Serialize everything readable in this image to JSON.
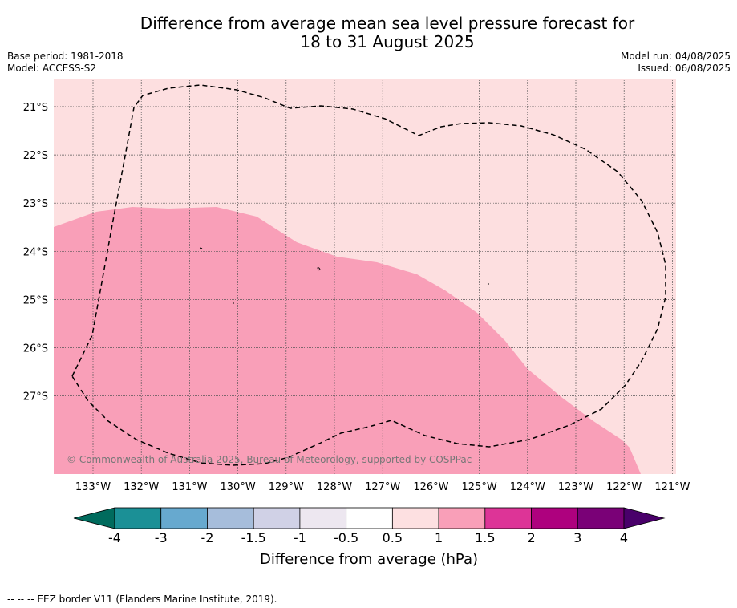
{
  "header": {
    "title_line1": "Difference from average mean sea level pressure forecast for",
    "title_line2": "18 to 31 August 2025",
    "base_period": "Base period: 1981-2018",
    "model": "Model: ACCESS-S2",
    "model_run": "Model run: 04/08/2025",
    "issued": "Issued: 06/08/2025"
  },
  "map": {
    "copyright": "© Commonwealth of Australia 2025, Bureau of Meteorology, supported by COSPPac",
    "lat_labels": [
      "21°S",
      "22°S",
      "23°S",
      "24°S",
      "25°S",
      "26°S",
      "27°S"
    ],
    "lon_labels": [
      "133°W",
      "132°W",
      "131°W",
      "130°W",
      "129°W",
      "128°W",
      "127°W",
      "126°W",
      "125°W",
      "124°W",
      "123°W",
      "122°W",
      "121°W"
    ],
    "colors": {
      "band_0_5_to_1": "#fddfe0",
      "band_1_to_1_5": "#f99fb8"
    }
  },
  "legend": {
    "title": "Difference from average (hPa)",
    "tick_labels": [
      "-4",
      "-3",
      "-2",
      "-1.5",
      "-1",
      "-0.5",
      "0.5",
      "1",
      "1.5",
      "2",
      "3",
      "4"
    ],
    "colors": [
      "#006b5d",
      "#1b9096",
      "#67a9cf",
      "#a6bddb",
      "#d0d1e6",
      "#ede7f0",
      "#ffffff",
      "#fde0e1",
      "#f99fb8",
      "#dd3497",
      "#ae017e",
      "#7a0177",
      "#49006a"
    ]
  },
  "footer": {
    "eez_note": "-- -- -- EEZ border V11 (Flanders Marine Institute, 2019)."
  }
}
